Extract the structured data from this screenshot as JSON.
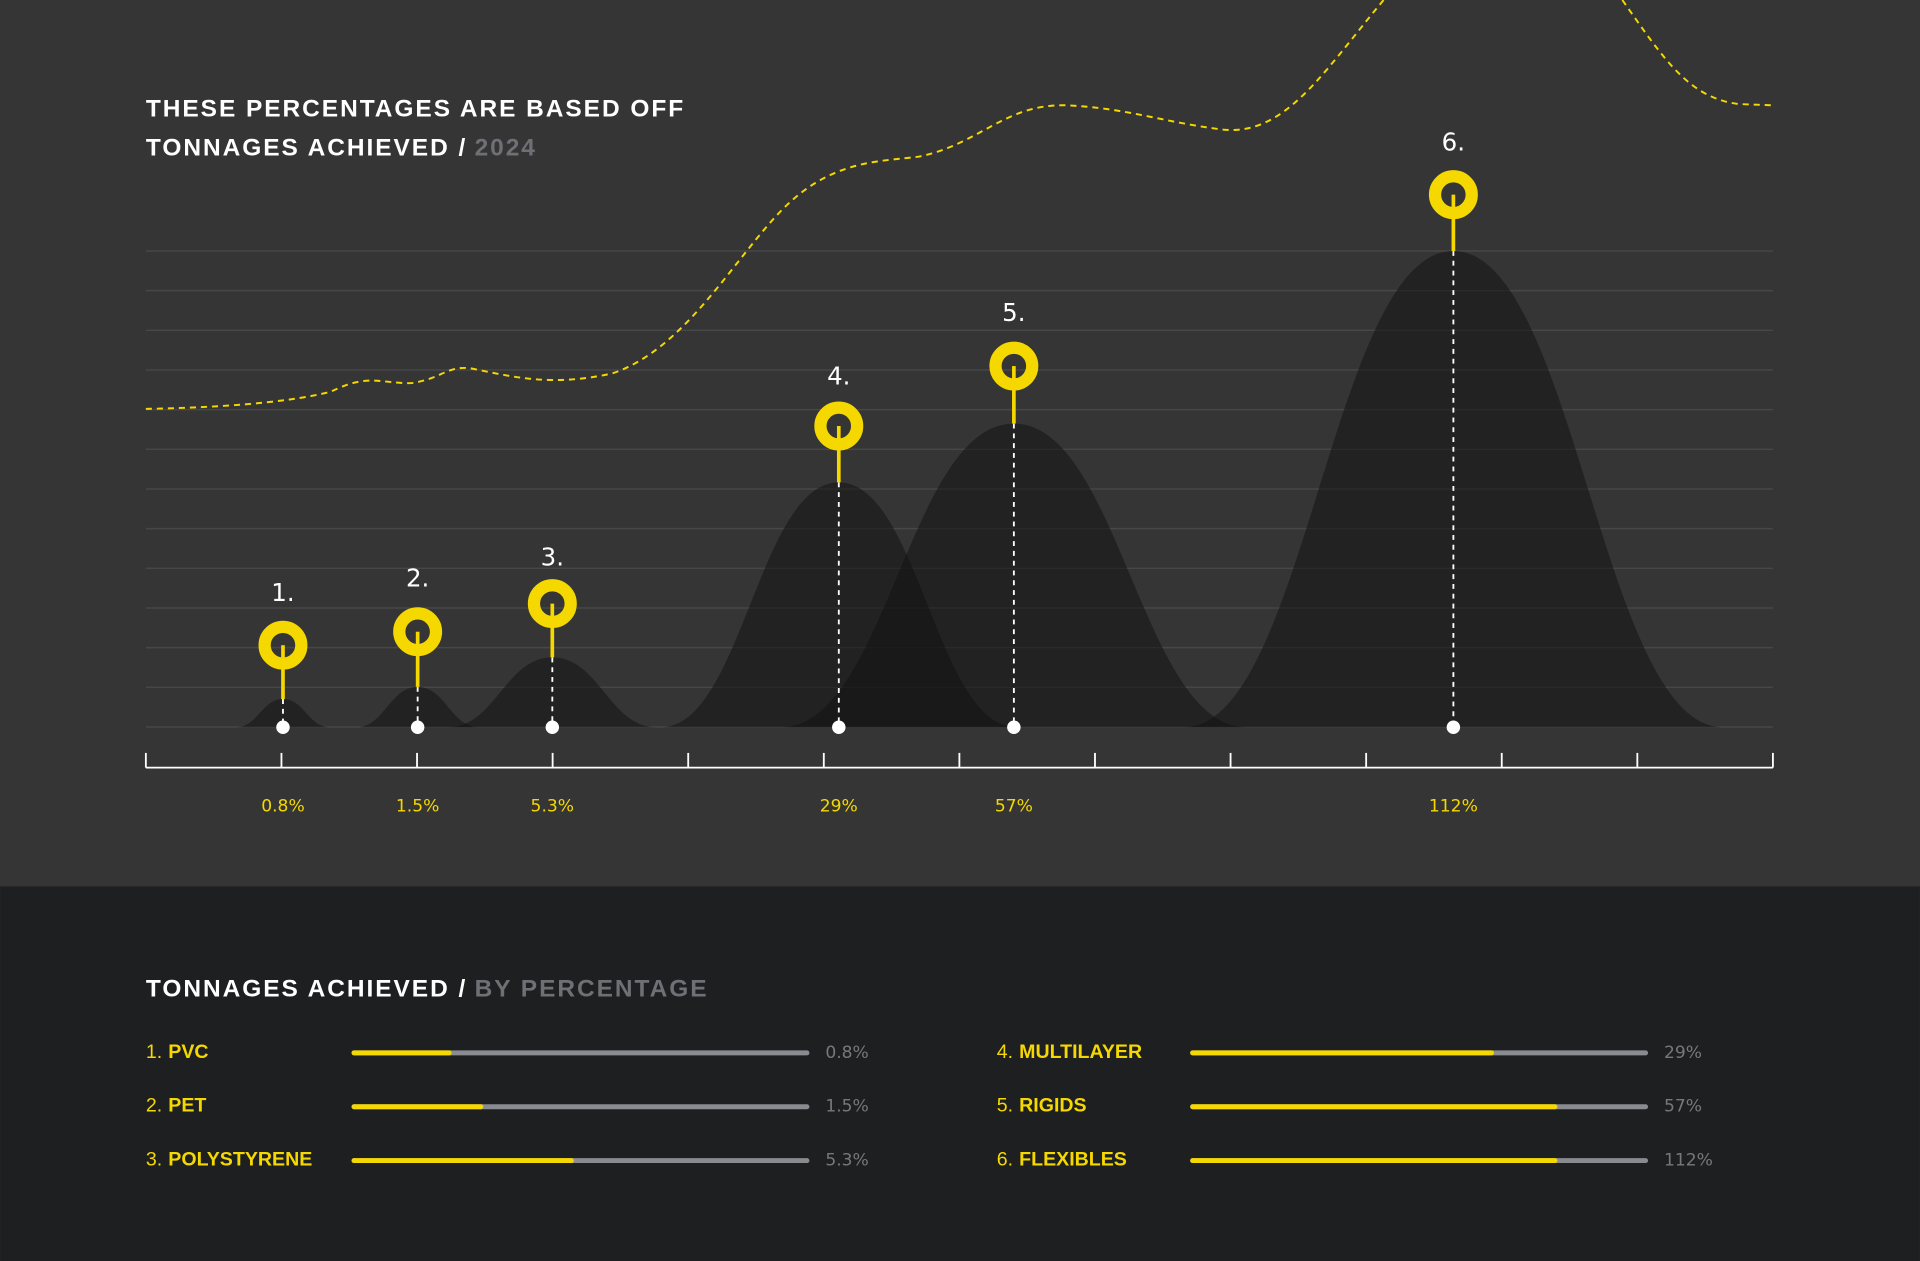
{
  "header": {
    "title_line1": "THESE PERCENTAGES ARE BASED OFF",
    "title_line2": "TONNAGES ACHIEVED /",
    "year": "2024"
  },
  "peaks": [
    {
      "rank": "1.",
      "value": "0.8%"
    },
    {
      "rank": "2.",
      "value": "1.5%"
    },
    {
      "rank": "3.",
      "value": "5.3%"
    },
    {
      "rank": "4.",
      "value": "29%"
    },
    {
      "rank": "5.",
      "value": "57%"
    },
    {
      "rank": "6.",
      "value": "112%"
    }
  ],
  "summary": {
    "title": "TONNAGES ACHIEVED /",
    "subtitle": "BY PERCENTAGE",
    "items": [
      {
        "rank": "1.",
        "name": "PVC",
        "value": "0.8%",
        "fill": 21
      },
      {
        "rank": "2.",
        "name": "PET",
        "value": "1.5%",
        "fill": 28
      },
      {
        "rank": "3.",
        "name": "POLYSTYRENE",
        "value": "5.3%",
        "fill": 48
      },
      {
        "rank": "4.",
        "name": "MULTILAYER",
        "value": "29%",
        "fill": 66
      },
      {
        "rank": "5.",
        "name": "RIGIDS",
        "value": "57%",
        "fill": 80
      },
      {
        "rank": "6.",
        "name": "FLEXIBLES",
        "value": "112%",
        "fill": 80
      }
    ]
  }
}
